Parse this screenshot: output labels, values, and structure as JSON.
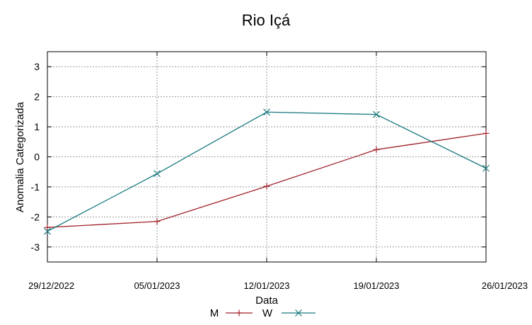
{
  "chart_data": {
    "type": "line",
    "title": "Rio Içá",
    "xlabel": "Data",
    "ylabel": "Anomalia Categorizada",
    "categories": [
      "29/12/2022",
      "05/01/2023",
      "12/01/2023",
      "19/01/2023",
      "26/01/2023"
    ],
    "ylim": [
      -3.5,
      3.5
    ],
    "yticks": [
      -3,
      -2,
      -1,
      0,
      1,
      2,
      3
    ],
    "ytick_labels": [
      "-3",
      "-2",
      "-1",
      "0",
      "1",
      "2",
      "3"
    ],
    "grid": true,
    "legend_position": "bottom-center",
    "series": [
      {
        "name": "M",
        "marker": "+",
        "color": "#a0222a",
        "values": [
          -2.35,
          -2.15,
          -0.98,
          0.24,
          0.78
        ]
      },
      {
        "name": "W",
        "marker": "x",
        "color": "#1a7a80",
        "values": [
          -2.48,
          -0.56,
          1.49,
          1.41,
          -0.38
        ]
      }
    ]
  }
}
